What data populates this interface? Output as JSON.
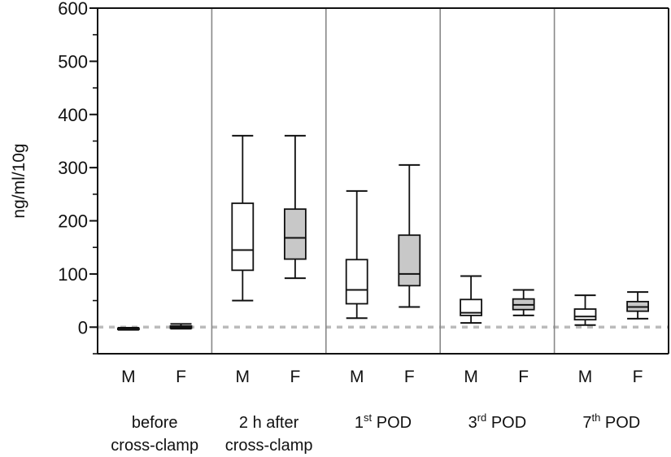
{
  "chart_data": {
    "type": "boxplot",
    "title": "",
    "ylabel": "ng/ml/10g",
    "ylim": [
      -50,
      600
    ],
    "yticks": [
      0,
      100,
      200,
      300,
      400,
      500,
      600
    ],
    "yticks_minor_step": 50,
    "reference_line": {
      "y": 0,
      "style": "dashed",
      "color": "#bbbbbb"
    },
    "colors": {
      "M": "#ffffff",
      "F": "#c8c8c8",
      "stroke": "#111111",
      "divider": "#888888"
    },
    "groups": [
      {
        "label_parts": [
          {
            "text": "before"
          }
        ],
        "label_line2": "cross-clamp",
        "boxes": [
          {
            "name": "M",
            "min": -5,
            "q1": -4,
            "median": -3,
            "q3": -2,
            "max": -1
          },
          {
            "name": "F",
            "min": -3,
            "q1": -2,
            "median": 0,
            "q3": 2,
            "max": 6
          }
        ]
      },
      {
        "label_parts": [
          {
            "text": "2 h after"
          }
        ],
        "label_line2": "cross-clamp",
        "boxes": [
          {
            "name": "M",
            "min": 50,
            "q1": 107,
            "median": 145,
            "q3": 233,
            "max": 360
          },
          {
            "name": "F",
            "min": 92,
            "q1": 128,
            "median": 168,
            "q3": 222,
            "max": 360
          }
        ]
      },
      {
        "label_parts": [
          {
            "text": "1"
          },
          {
            "text": "st",
            "sup": true
          },
          {
            "text": " POD"
          }
        ],
        "label_line2": "",
        "boxes": [
          {
            "name": "M",
            "min": 17,
            "q1": 44,
            "median": 70,
            "q3": 127,
            "max": 256
          },
          {
            "name": "F",
            "min": 38,
            "q1": 78,
            "median": 100,
            "q3": 173,
            "max": 305
          }
        ]
      },
      {
        "label_parts": [
          {
            "text": "3"
          },
          {
            "text": "rd",
            "sup": true
          },
          {
            "text": " POD"
          }
        ],
        "label_line2": "",
        "boxes": [
          {
            "name": "M",
            "min": 8,
            "q1": 22,
            "median": 27,
            "q3": 52,
            "max": 96
          },
          {
            "name": "F",
            "min": 22,
            "q1": 33,
            "median": 42,
            "q3": 53,
            "max": 70
          }
        ]
      },
      {
        "label_parts": [
          {
            "text": "7"
          },
          {
            "text": "th",
            "sup": true
          },
          {
            "text": " POD"
          }
        ],
        "label_line2": "",
        "boxes": [
          {
            "name": "M",
            "min": 4,
            "q1": 14,
            "median": 20,
            "q3": 34,
            "max": 60
          },
          {
            "name": "F",
            "min": 16,
            "q1": 30,
            "median": 38,
            "q3": 48,
            "max": 66
          }
        ]
      }
    ]
  }
}
